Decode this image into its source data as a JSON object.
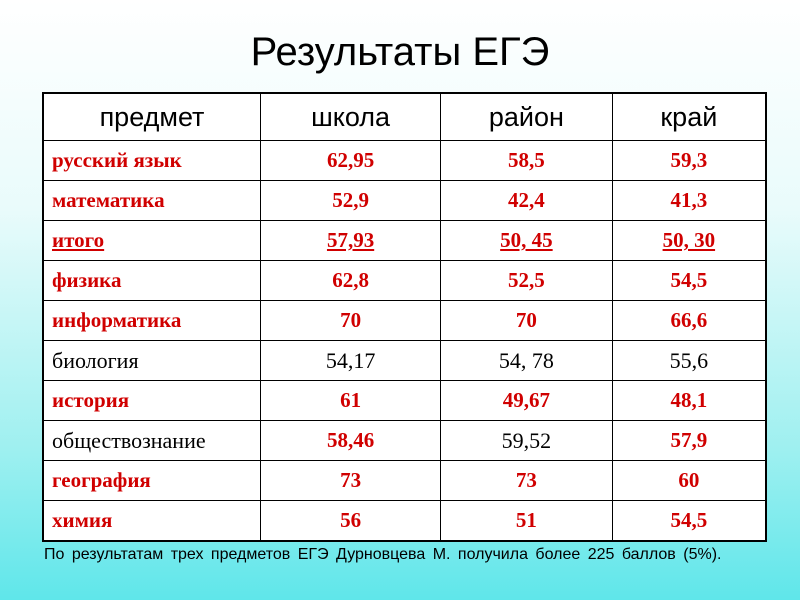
{
  "title": "Результаты ЕГЭ",
  "table": {
    "header": [
      "предмет",
      "школа",
      "район",
      "край"
    ],
    "rows": [
      [
        "русский язык",
        "62,95",
        "58,5",
        "59,3"
      ],
      [
        "математика",
        "52,9",
        "42,4",
        "41,3"
      ],
      [
        "итого",
        "57,93",
        "50, 45",
        "50, 30"
      ],
      [
        "физика",
        "62,8",
        "52,5",
        "54,5"
      ],
      [
        "информатика",
        "70",
        "70",
        "66,6"
      ],
      [
        "биология",
        "54,17",
        "54, 78",
        "55,6"
      ],
      [
        "история",
        "61",
        "49,67",
        "48,1"
      ],
      [
        "обществознание",
        "58,46",
        "59,52",
        "57,9"
      ],
      [
        "география",
        "73",
        "73",
        "60"
      ],
      [
        "химия",
        "56",
        "51",
        "54,5"
      ]
    ]
  },
  "footnote": "По результатам трех предметов ЕГЭ Дурновцева М. получила более 225 баллов (5%)."
}
